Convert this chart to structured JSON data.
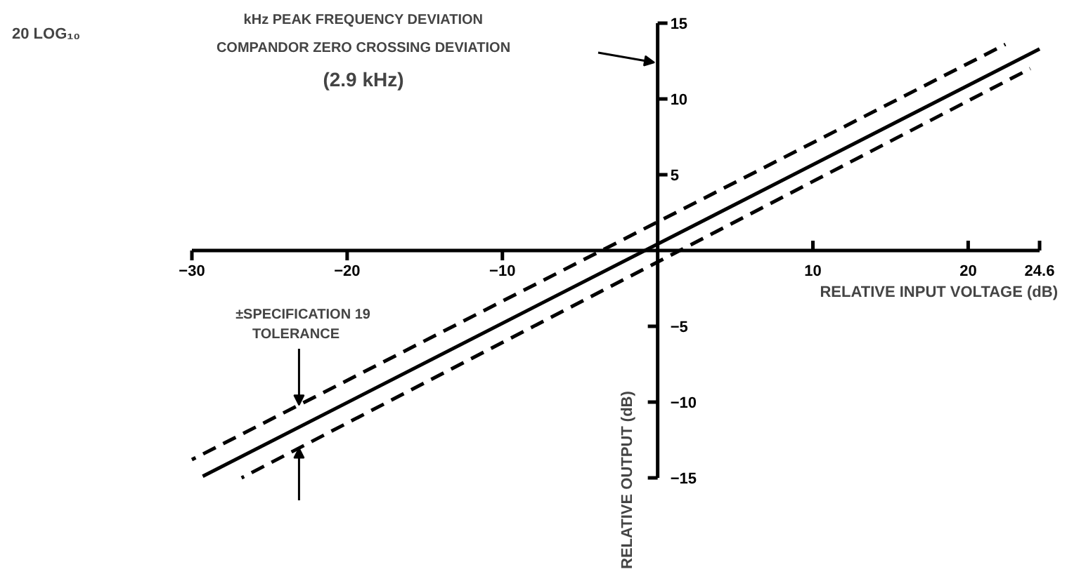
{
  "chart_data": {
    "type": "line",
    "xlabel": "RELATIVE INPUT VOLTAGE (dB)",
    "ylabel": "RELATIVE OUTPUT (dB)",
    "xlim": [
      -30,
      24.6
    ],
    "ylim": [
      -15,
      15
    ],
    "xticks": [
      -30,
      -20,
      -10,
      10,
      20,
      24.6
    ],
    "yticks": [
      -15,
      -10,
      -5,
      5,
      10,
      15
    ],
    "grid": false,
    "marker": "none",
    "annotations": [
      "20 LOG₁₀",
      "kHz PEAK FREQUENCY DEVIATION",
      "COMPANDOR ZERO CROSSING DEVIATION",
      "(2.9 kHz)",
      "±SPECIFICATION 19",
      {
        "text": "TOLERANCE",
        "x": -23.1,
        "y": -10.2
      }
    ],
    "series": [
      {
        "color": "#000000",
        "line_style": "dashed",
        "x": [
          -30,
          22.4
        ],
        "values": [
          -13.8,
          13.6
        ]
      },
      {
        "color": "#000000",
        "line_style": "solid",
        "x": [
          -29.3,
          24.6
        ],
        "values": [
          -14.9,
          13.3
        ]
      },
      {
        "color": "#000000",
        "line_style": "dashed",
        "x": [
          -26.8,
          24
        ],
        "values": [
          -15,
          12.0
        ]
      }
    ]
  }
}
